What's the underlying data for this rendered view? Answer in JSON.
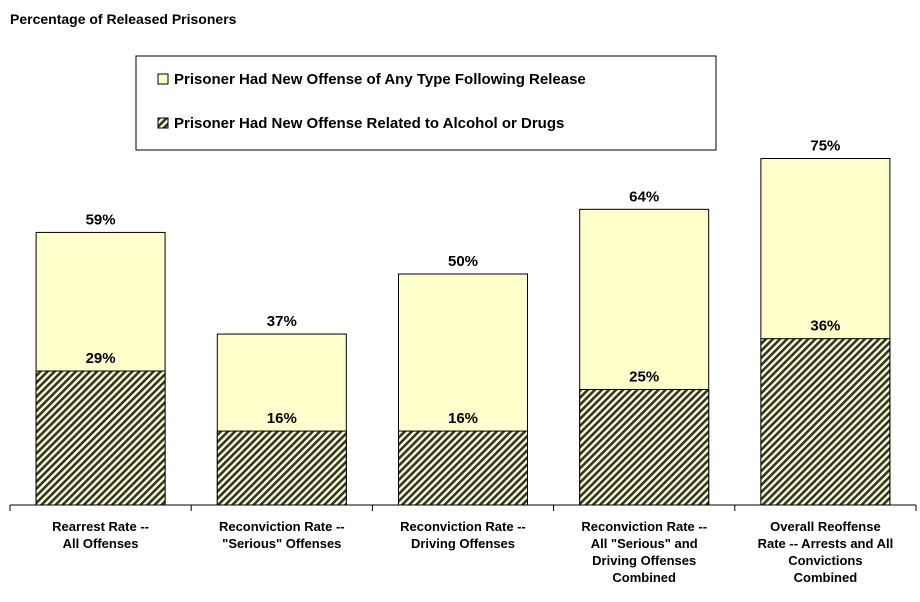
{
  "chart_data": {
    "type": "bar",
    "title": "Percentage of Released Prisoners",
    "categories": [
      [
        "Rearrest Rate --",
        "All Offenses"
      ],
      [
        "Reconviction Rate --",
        "\"Serious\" Offenses"
      ],
      [
        "Reconviction Rate --",
        "Driving Offenses"
      ],
      [
        "Reconviction Rate --",
        "All \"Serious\" and",
        "Driving Offenses",
        "Combined"
      ],
      [
        "Overall Reoffense",
        "Rate -- Arrests and All",
        "Convictions",
        "Combined"
      ]
    ],
    "series": [
      {
        "name": "Prisoner Had New Offense of Any Type Following Release",
        "values": [
          59,
          37,
          50,
          64,
          75
        ],
        "labels": [
          "59%",
          "37%",
          "50%",
          "64%",
          "75%"
        ],
        "color": "#ffffcc",
        "pattern": "solid"
      },
      {
        "name": "Prisoner Had New Offense Related to Alcohol or Drugs",
        "values": [
          29,
          16,
          16,
          25,
          36
        ],
        "labels": [
          "29%",
          "16%",
          "16%",
          "25%",
          "36%"
        ],
        "color": "#333333",
        "pattern": "diagonal-hatch"
      }
    ],
    "overlapping_bars": true,
    "ylim": [
      0,
      80
    ],
    "y_axis_visible": false,
    "grid": false,
    "legend_position": "top"
  }
}
